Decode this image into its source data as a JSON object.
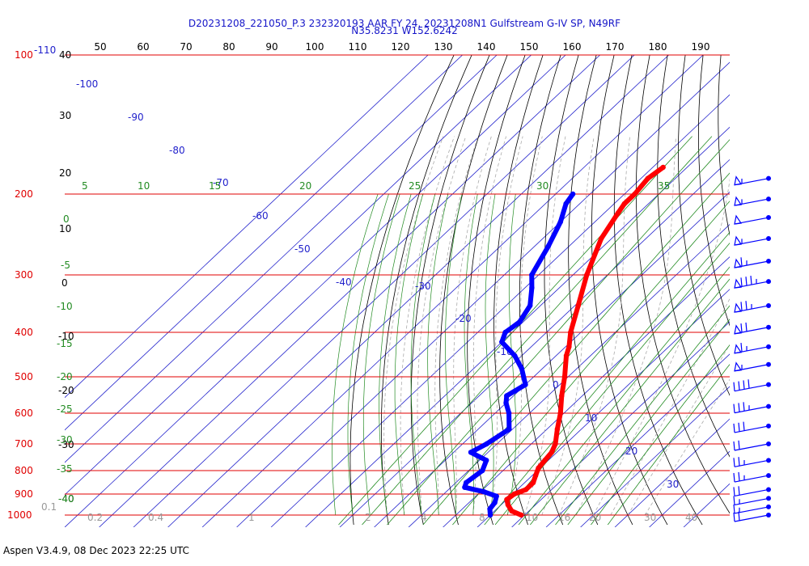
{
  "header": {
    "line1": "D20231208_221050_P.3 232320193 AAR FY 24, 20231208N1 Gulfstream G-IV SP, N49RF",
    "line2": "N35.8231 W152.6242"
  },
  "footer": "Aspen V3.4.9, 08 Dec 2023  22:25 UTC",
  "colors": {
    "isobar": "#e00000",
    "temperature": "#ff0000",
    "dewpoint": "#0000ff",
    "isotherm": "#2222cc",
    "dry_adiabat": "#000000",
    "mixing_ratio": "#228b22",
    "barb": "#0000ff"
  },
  "chart_data": {
    "type": "skew-t",
    "pressure_levels": [
      {
        "p": 1000,
        "label": "1000"
      },
      {
        "p": 900,
        "label": "900"
      },
      {
        "p": 800,
        "label": "800"
      },
      {
        "p": 700,
        "label": "700"
      },
      {
        "p": 600,
        "label": "600"
      },
      {
        "p": 500,
        "label": "500"
      },
      {
        "p": 400,
        "label": "400"
      },
      {
        "p": 300,
        "label": "300"
      },
      {
        "p": 200,
        "label": "200"
      },
      {
        "p": 100,
        "label": "100"
      }
    ],
    "top_pressure_extra_label": "-110",
    "top_axis_labels": [
      "50",
      "60",
      "70",
      "80",
      "90",
      "100",
      "110",
      "120",
      "130",
      "140",
      "150",
      "160",
      "170",
      "180",
      "190"
    ],
    "left_height_labels": [
      "40",
      "30",
      "20",
      "10",
      "0",
      "-10",
      "-20",
      "-30",
      "-40"
    ],
    "isotherm_labels": [
      "-100",
      "-90",
      "-80",
      "-70",
      "-60",
      "-50",
      "-40",
      "-30",
      "-20",
      "-10",
      "0",
      "10",
      "20",
      "30"
    ],
    "mixing_ratio_top_labels": [
      "5",
      "10",
      "15",
      "20",
      "25",
      "30",
      "35"
    ],
    "green_left_labels": [
      "0",
      "-5",
      "-10",
      "-15",
      "-20",
      "-25",
      "-30",
      "-35",
      "-40"
    ],
    "bottom_axis_labels": [
      "0.1",
      "0.2",
      "0.4",
      "1",
      "2",
      "4",
      "5",
      "8",
      "10",
      "16",
      "20",
      "30",
      "40"
    ],
    "temperature": [
      {
        "p": 1000,
        "t": 9
      },
      {
        "p": 980,
        "t": 5
      },
      {
        "p": 950,
        "t": 2
      },
      {
        "p": 925,
        "t": 0
      },
      {
        "p": 900,
        "t": 0.5
      },
      {
        "p": 880,
        "t": 2.5
      },
      {
        "p": 850,
        "t": 2.5
      },
      {
        "p": 820,
        "t": 1
      },
      {
        "p": 790,
        "t": -0.5
      },
      {
        "p": 760,
        "t": -1
      },
      {
        "p": 730,
        "t": -1.5
      },
      {
        "p": 700,
        "t": -3
      },
      {
        "p": 650,
        "t": -7
      },
      {
        "p": 600,
        "t": -11
      },
      {
        "p": 550,
        "t": -16
      },
      {
        "p": 500,
        "t": -21
      },
      {
        "p": 450,
        "t": -27
      },
      {
        "p": 430,
        "t": -29
      },
      {
        "p": 400,
        "t": -33
      },
      {
        "p": 350,
        "t": -39
      },
      {
        "p": 300,
        "t": -46
      },
      {
        "p": 250,
        "t": -53
      },
      {
        "p": 220,
        "t": -56
      },
      {
        "p": 210,
        "t": -57
      },
      {
        "p": 200,
        "t": -57
      },
      {
        "p": 185,
        "t": -58
      },
      {
        "p": 175,
        "t": -57
      }
    ],
    "dewpoint": [
      {
        "p": 1000,
        "t": 0
      },
      {
        "p": 970,
        "t": -2
      },
      {
        "p": 940,
        "t": -2.5
      },
      {
        "p": 910,
        "t": -4
      },
      {
        "p": 890,
        "t": -9
      },
      {
        "p": 870,
        "t": -16
      },
      {
        "p": 850,
        "t": -17
      },
      {
        "p": 800,
        "t": -16
      },
      {
        "p": 760,
        "t": -18
      },
      {
        "p": 730,
        "t": -25
      },
      {
        "p": 700,
        "t": -23
      },
      {
        "p": 650,
        "t": -21
      },
      {
        "p": 600,
        "t": -26
      },
      {
        "p": 570,
        "t": -30
      },
      {
        "p": 550,
        "t": -32
      },
      {
        "p": 520,
        "t": -30
      },
      {
        "p": 480,
        "t": -36
      },
      {
        "p": 450,
        "t": -42
      },
      {
        "p": 420,
        "t": -50
      },
      {
        "p": 400,
        "t": -52
      },
      {
        "p": 380,
        "t": -51
      },
      {
        "p": 350,
        "t": -53
      },
      {
        "p": 320,
        "t": -58
      },
      {
        "p": 300,
        "t": -62
      },
      {
        "p": 260,
        "t": -66
      },
      {
        "p": 230,
        "t": -70
      },
      {
        "p": 210,
        "t": -74
      },
      {
        "p": 200,
        "t": -75
      }
    ],
    "wind_barbs": [
      {
        "p": 1000,
        "spd": 20
      },
      {
        "p": 960,
        "spd": 15
      },
      {
        "p": 920,
        "spd": 15
      },
      {
        "p": 880,
        "spd": 20
      },
      {
        "p": 820,
        "spd": 25
      },
      {
        "p": 760,
        "spd": 25
      },
      {
        "p": 700,
        "spd": 20
      },
      {
        "p": 640,
        "spd": 30
      },
      {
        "p": 580,
        "spd": 35
      },
      {
        "p": 520,
        "spd": 40
      },
      {
        "p": 470,
        "spd": 55
      },
      {
        "p": 430,
        "spd": 65
      },
      {
        "p": 390,
        "spd": 70
      },
      {
        "p": 350,
        "spd": 75
      },
      {
        "p": 310,
        "spd": 85
      },
      {
        "p": 280,
        "spd": 65
      },
      {
        "p": 250,
        "spd": 55
      },
      {
        "p": 225,
        "spd": 50
      },
      {
        "p": 205,
        "spd": 55
      },
      {
        "p": 185,
        "spd": 55
      }
    ]
  }
}
